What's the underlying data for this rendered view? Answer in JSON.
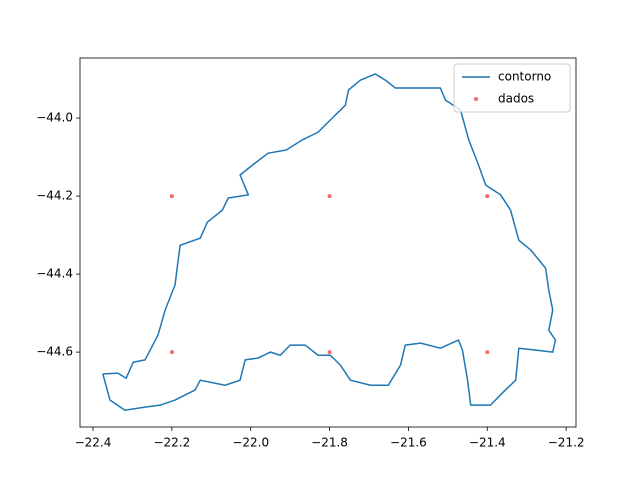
{
  "chart_data": {
    "type": "line",
    "xlim": [
      -22.433,
      -21.175
    ],
    "ylim": [
      -44.792,
      -43.846
    ],
    "xticks": [
      {
        "value": -22.4,
        "label": "−22.4"
      },
      {
        "value": -22.2,
        "label": "−22.2"
      },
      {
        "value": -22.0,
        "label": "−22.0"
      },
      {
        "value": -21.8,
        "label": "−21.8"
      },
      {
        "value": -21.6,
        "label": "−21.6"
      },
      {
        "value": -21.4,
        "label": "−21.4"
      },
      {
        "value": -21.2,
        "label": "−21.2"
      }
    ],
    "yticks": [
      {
        "value": -44.0,
        "label": "−44.0"
      },
      {
        "value": -44.2,
        "label": "−44.2"
      },
      {
        "value": -44.4,
        "label": "−44.4"
      },
      {
        "value": -44.6,
        "label": "−44.6"
      }
    ],
    "legend": "upper right",
    "series": [
      {
        "name": "contorno",
        "type": "line",
        "color": "#1f77b4",
        "x": [
          -22.375,
          -22.337,
          -22.316,
          -22.298,
          -22.268,
          -22.235,
          -22.217,
          -22.192,
          -22.184,
          -22.179,
          -22.128,
          -22.11,
          -22.072,
          -22.057,
          -22.006,
          -22.027,
          -21.996,
          -21.956,
          -21.91,
          -21.869,
          -21.829,
          -21.798,
          -21.76,
          -21.752,
          -21.722,
          -21.684,
          -21.658,
          -21.633,
          -21.519,
          -21.506,
          -21.468,
          -21.447,
          -21.422,
          -21.404,
          -21.366,
          -21.341,
          -21.32,
          -21.29,
          -21.252,
          -21.244,
          -21.234,
          -21.244,
          -21.227,
          -21.234,
          -21.277,
          -21.32,
          -21.328,
          -21.354,
          -21.392,
          -21.442,
          -21.45,
          -21.463,
          -21.473,
          -21.519,
          -21.569,
          -21.608,
          -21.62,
          -21.651,
          -21.696,
          -21.747,
          -21.773,
          -21.798,
          -21.829,
          -21.862,
          -21.9,
          -21.925,
          -21.95,
          -21.981,
          -22.014,
          -22.027,
          -22.065,
          -22.128,
          -22.141,
          -22.192,
          -22.23,
          -22.268,
          -22.319,
          -22.357,
          -22.375
        ],
        "values": [
          -44.656,
          -44.654,
          -44.667,
          -44.626,
          -44.62,
          -44.556,
          -44.492,
          -44.428,
          -44.364,
          -44.326,
          -44.308,
          -44.267,
          -44.236,
          -44.205,
          -44.197,
          -44.146,
          -44.121,
          -44.09,
          -44.082,
          -44.056,
          -44.036,
          -44.005,
          -43.967,
          -43.928,
          -43.903,
          -43.887,
          -43.903,
          -43.923,
          -43.923,
          -43.954,
          -43.979,
          -44.056,
          -44.121,
          -44.172,
          -44.197,
          -44.236,
          -44.313,
          -44.338,
          -44.385,
          -44.441,
          -44.492,
          -44.544,
          -44.569,
          -44.6,
          -44.595,
          -44.59,
          -44.672,
          -44.697,
          -44.736,
          -44.736,
          -44.672,
          -44.595,
          -44.569,
          -44.59,
          -44.577,
          -44.582,
          -44.633,
          -44.685,
          -44.685,
          -44.672,
          -44.633,
          -44.608,
          -44.608,
          -44.582,
          -44.582,
          -44.608,
          -44.6,
          -44.615,
          -44.62,
          -44.672,
          -44.685,
          -44.672,
          -44.697,
          -44.723,
          -44.736,
          -44.741,
          -44.749,
          -44.723,
          -44.656
        ]
      },
      {
        "name": "dados",
        "type": "scatter",
        "color": "#f26b6b",
        "x": [
          -22.2,
          -21.8,
          -21.4,
          -22.2,
          -21.8,
          -21.4
        ],
        "values": [
          -44.2,
          -44.2,
          -44.2,
          -44.6,
          -44.6,
          -44.6
        ]
      }
    ]
  }
}
